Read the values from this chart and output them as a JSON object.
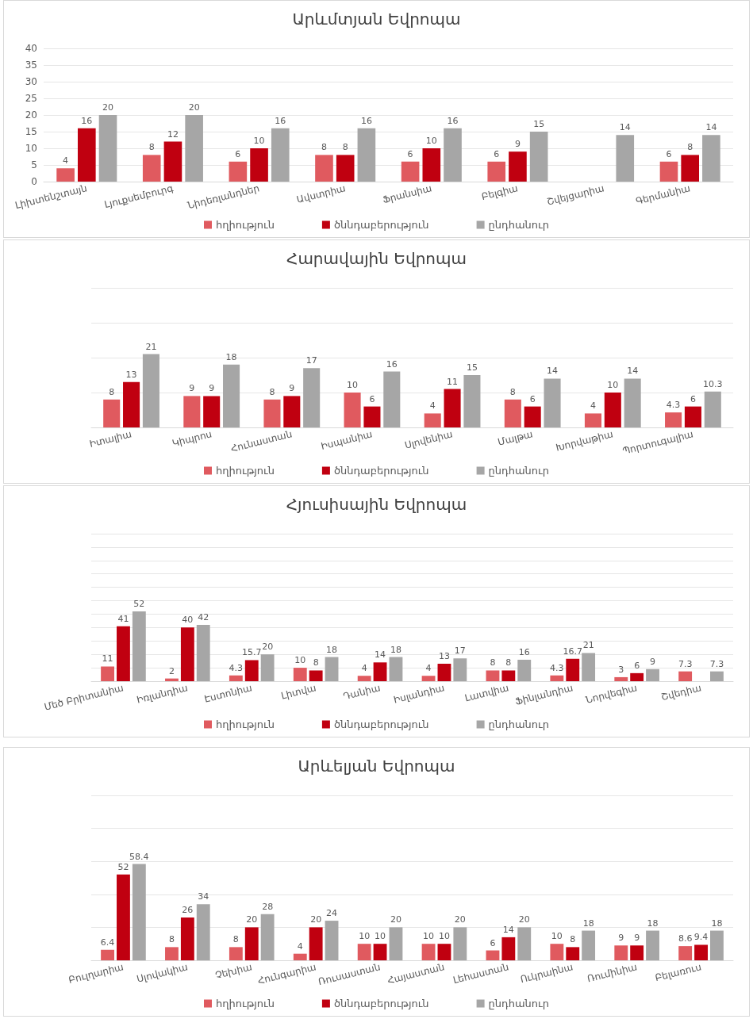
{
  "chart_data": [
    {
      "type": "bar",
      "title": "Արևմտյան Եվրոպա",
      "categories": [
        "Լիխտենշտայն",
        "Լյուքսեմբուրգ",
        "Նիդեռլանդներ",
        "Ավստրիա",
        "Ֆրանսիա",
        "Բելգիա",
        "Շվեյցարիա",
        "Գերմանիա"
      ],
      "series": [
        {
          "name": "հղիություն",
          "color": "#e05a5f",
          "values": [
            4,
            8,
            6,
            8,
            6,
            6,
            null,
            6
          ]
        },
        {
          "name": "ծննդաբերություն",
          "color": "#c00010",
          "values": [
            16,
            12,
            10,
            8,
            10,
            9,
            null,
            8
          ]
        },
        {
          "name": "ընդհանուր",
          "color": "#a6a6a6",
          "values": [
            20,
            20,
            16,
            16,
            16,
            15,
            14,
            14
          ]
        }
      ],
      "ylim": [
        0,
        40
      ],
      "yticks": [
        0,
        5,
        10,
        15,
        20,
        25,
        30,
        35,
        40
      ],
      "grid": "y",
      "legend": "bottom",
      "data_labels": true
    },
    {
      "type": "bar",
      "title": "Հարավային Եվրոպա",
      "categories": [
        "Իտալիա",
        "Կիպրոս",
        "Հունաստան",
        "Իսպանիա",
        "Սլովենիա",
        "Մալթա",
        "Խորվաթիա",
        "Պորտուգալիա"
      ],
      "series": [
        {
          "name": "հղիություն",
          "color": "#e05a5f",
          "values": [
            8,
            9,
            8,
            10,
            4,
            8,
            4,
            4.3
          ]
        },
        {
          "name": "ծննդաբերություն",
          "color": "#c00010",
          "values": [
            13,
            9,
            9,
            6,
            11,
            6,
            10,
            6
          ]
        },
        {
          "name": "ընդհանուր",
          "color": "#a6a6a6",
          "values": [
            21,
            18,
            17,
            16,
            15,
            14,
            14,
            10.3
          ]
        }
      ],
      "ylim": [
        0,
        40
      ],
      "yticks": [
        0,
        10,
        20,
        30,
        40
      ],
      "tick_labels": "x",
      "grid": "y",
      "legend": "bottom",
      "data_labels": true
    },
    {
      "type": "bar",
      "title": "Հյուսիսային Եվրոպա",
      "categories": [
        "Մեծ Բրիտանիա",
        "Իռլանդիա",
        "Էստոնիա",
        "Լիտվա",
        "Դանիա",
        "Իսլանդիա",
        "Լատվիա",
        "Ֆինլանդիա",
        "Նորվեգիա",
        "Շվեդիա"
      ],
      "series": [
        {
          "name": "հղիություն",
          "color": "#e05a5f",
          "values": [
            11,
            2,
            4.3,
            10,
            4,
            4,
            8,
            4.3,
            3,
            7.3
          ]
        },
        {
          "name": "ծննդաբերություն",
          "color": "#c00010",
          "values": [
            41,
            40,
            15.7,
            8,
            14,
            13,
            8,
            16.7,
            6,
            null
          ]
        },
        {
          "name": "ընդհանուր",
          "color": "#a6a6a6",
          "values": [
            52,
            42,
            20,
            18,
            18,
            17,
            16,
            21,
            9,
            7.3
          ]
        }
      ],
      "ylim": [
        0,
        110
      ],
      "yticks": [
        0,
        10,
        20,
        30,
        40,
        50,
        60,
        70,
        80,
        90,
        100,
        110
      ],
      "tick_labels": "x",
      "grid": "y",
      "legend": "bottom",
      "data_labels": true
    },
    {
      "type": "bar",
      "title": "Արևելյան Եվրոպա",
      "categories": [
        "Բուլղարիա",
        "Սլովակիա",
        "Չեխիա",
        "Հունգարիա",
        "Ռուսաստան",
        "Հայաստան",
        "Լեհաստան",
        "Ուկրաինա",
        "Ռումինիա",
        "Բելառուս"
      ],
      "series": [
        {
          "name": "հղիություն",
          "color": "#e05a5f",
          "values": [
            6.4,
            8,
            8,
            4,
            10,
            10,
            6,
            10,
            9,
            8.6
          ]
        },
        {
          "name": "ծննդաբերություն",
          "color": "#c00010",
          "values": [
            52,
            26,
            20,
            20,
            10,
            10,
            14,
            8,
            9,
            9.4
          ]
        },
        {
          "name": "ընդհանուր",
          "color": "#a6a6a6",
          "values": [
            58.4,
            34,
            28,
            24,
            20,
            20,
            20,
            18,
            18,
            18
          ]
        }
      ],
      "ylim": [
        0,
        100
      ],
      "yticks": [
        0,
        20,
        40,
        60,
        80,
        100
      ],
      "tick_labels": "x",
      "grid": "y",
      "legend": "bottom",
      "data_labels": true
    }
  ]
}
